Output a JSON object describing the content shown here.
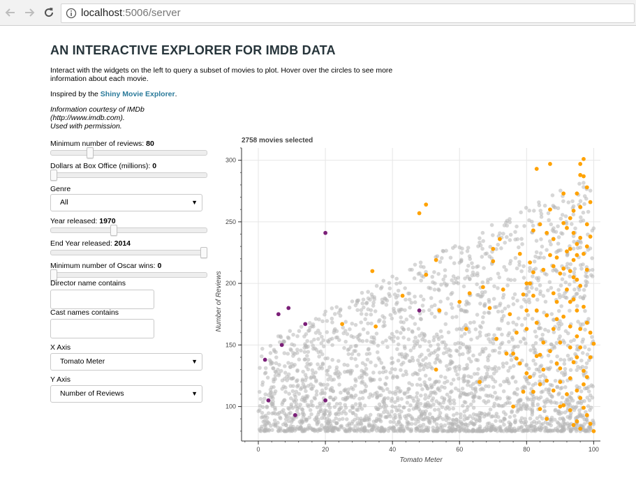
{
  "browser": {
    "url_host": "localhost",
    "url_path": ":5006/server"
  },
  "page": {
    "title": "AN INTERACTIVE EXPLORER FOR IMDB DATA",
    "intro": "Interact with the widgets on the left to query a subset of movies to plot. Hover over the circles to see more information about each movie.",
    "inspired_prefix": "Inspired by the ",
    "inspired_link": "Shiny Movie Explorer",
    "inspired_suffix": ".",
    "credit_line1": "Information courtesy of IMDb",
    "credit_line2": "(http://www.imdb.com).",
    "credit_line3": "Used with permission."
  },
  "widgets": {
    "min_reviews": {
      "label": "Minimum number of reviews: ",
      "value": "80",
      "fraction": 0.24
    },
    "box_office": {
      "label": "Dollars at Box Office (millions): ",
      "value": "0",
      "fraction": 0.0
    },
    "genre": {
      "label": "Genre",
      "selected": "All"
    },
    "year": {
      "label": "Year released: ",
      "value": "1970",
      "fraction": 0.4
    },
    "end_year": {
      "label": "End Year released: ",
      "value": "2014",
      "fraction": 1.0
    },
    "oscars": {
      "label": "Minimum number of Oscar wins: ",
      "value": "0",
      "fraction": 0.0
    },
    "director": {
      "label": "Director name contains",
      "value": ""
    },
    "cast": {
      "label": "Cast names contains",
      "value": ""
    },
    "x_axis": {
      "label": "X Axis",
      "selected": "Tomato Meter"
    },
    "y_axis": {
      "label": "Y Axis",
      "selected": "Number of Reviews"
    }
  },
  "chart_header": "2758 movies selected",
  "chart_data": {
    "type": "scatter",
    "xlabel": "Tomato Meter",
    "ylabel": "Number of Reviews",
    "xlim": [
      -5,
      102
    ],
    "ylim": [
      72,
      310
    ],
    "x_ticks": [
      "0",
      "20",
      "40",
      "60",
      "80",
      "100"
    ],
    "y_ticks": [
      "100",
      "150",
      "200",
      "250",
      "300"
    ],
    "grid": true,
    "colors": {
      "default": "#b7b7b7",
      "award": "#ffa200",
      "highlight": "#7b1f78"
    },
    "background_points": 2600,
    "background_seed": 20140,
    "series": [
      {
        "color_key": "highlight",
        "points": [
          [
            2,
            138
          ],
          [
            3,
            105
          ],
          [
            6,
            175
          ],
          [
            7,
            150
          ],
          [
            9,
            180
          ],
          [
            11,
            93
          ],
          [
            14,
            167
          ],
          [
            20,
            241
          ],
          [
            20,
            105
          ],
          [
            48,
            178
          ]
        ]
      },
      {
        "color_key": "award",
        "points": [
          [
            25,
            167
          ],
          [
            34,
            210
          ],
          [
            35,
            165
          ],
          [
            43,
            190
          ],
          [
            48,
            257
          ],
          [
            50,
            264
          ],
          [
            50,
            207
          ],
          [
            53,
            219
          ],
          [
            53,
            130
          ],
          [
            54,
            178
          ],
          [
            60,
            185
          ],
          [
            62,
            163
          ],
          [
            63,
            192
          ],
          [
            66,
            120
          ],
          [
            67,
            197
          ],
          [
            69,
            180
          ],
          [
            70,
            228
          ],
          [
            70,
            218
          ],
          [
            71,
            155
          ],
          [
            72,
            236
          ],
          [
            73,
            195
          ],
          [
            74,
            143
          ],
          [
            75,
            175
          ],
          [
            76,
            100
          ],
          [
            77,
            160
          ],
          [
            77,
            139
          ],
          [
            78,
            224
          ],
          [
            79,
            191
          ],
          [
            80,
            200
          ],
          [
            80,
            127
          ],
          [
            80,
            178
          ],
          [
            81,
            200
          ],
          [
            82,
            209
          ],
          [
            82,
            112
          ],
          [
            83,
            293
          ],
          [
            83,
            178
          ],
          [
            84,
            248
          ],
          [
            84,
            142
          ],
          [
            85,
            211
          ],
          [
            86,
            174
          ],
          [
            86,
            90
          ],
          [
            87,
            297
          ],
          [
            87,
            260
          ],
          [
            87,
            223
          ],
          [
            88,
            214
          ],
          [
            88,
            192
          ],
          [
            88,
            163
          ],
          [
            89,
            221
          ],
          [
            89,
            185
          ],
          [
            89,
            135
          ],
          [
            90,
            208
          ],
          [
            90,
            152
          ],
          [
            90,
            100
          ],
          [
            91,
            212
          ],
          [
            91,
            249
          ],
          [
            91,
            273
          ],
          [
            91,
            173
          ],
          [
            92,
            245
          ],
          [
            92,
            195
          ],
          [
            93,
            253
          ],
          [
            93,
            228
          ],
          [
            93,
            210
          ],
          [
            93,
            165
          ],
          [
            93,
            123
          ],
          [
            93,
            97
          ],
          [
            94,
            259
          ],
          [
            94,
            241
          ],
          [
            94,
            219
          ],
          [
            94,
            187
          ],
          [
            94,
            136
          ],
          [
            94,
            85
          ],
          [
            95,
            273
          ],
          [
            95,
            232
          ],
          [
            95,
            223
          ],
          [
            95,
            203
          ],
          [
            95,
            178
          ],
          [
            95,
            140
          ],
          [
            95,
            113
          ],
          [
            95,
            88
          ],
          [
            96,
            297
          ],
          [
            96,
            288
          ],
          [
            96,
            262
          ],
          [
            96,
            237
          ],
          [
            96,
            198
          ],
          [
            96,
            163
          ],
          [
            96,
            148
          ],
          [
            96,
            107
          ],
          [
            96,
            82
          ],
          [
            97,
            301
          ],
          [
            97,
            287
          ],
          [
            97,
            224
          ],
          [
            97,
            181
          ],
          [
            97,
            129
          ],
          [
            97,
            99
          ],
          [
            98,
            278
          ],
          [
            98,
            248
          ],
          [
            98,
            230
          ],
          [
            98,
            211
          ],
          [
            98,
            168
          ],
          [
            98,
            124
          ],
          [
            98,
            93
          ],
          [
            99,
            266
          ],
          [
            99,
            238
          ],
          [
            99,
            160
          ],
          [
            99,
            140
          ],
          [
            99,
            86
          ],
          [
            100,
            151
          ],
          [
            100,
            80
          ],
          [
            81,
            217
          ],
          [
            82,
            243
          ],
          [
            85,
            152
          ],
          [
            86,
            121
          ],
          [
            88,
            113
          ],
          [
            90,
            131
          ],
          [
            91,
            101
          ],
          [
            92,
            226
          ],
          [
            93,
            185
          ],
          [
            94,
            205
          ],
          [
            83,
            141
          ],
          [
            84,
            98
          ],
          [
            86,
            241
          ],
          [
            88,
            236
          ],
          [
            89,
            171
          ],
          [
            90,
            120
          ],
          [
            92,
            110
          ],
          [
            93,
            148
          ],
          [
            95,
            157
          ],
          [
            97,
            118
          ],
          [
            76,
            143
          ],
          [
            78,
            135
          ],
          [
            79,
            112
          ],
          [
            80,
            163
          ],
          [
            81,
            124
          ],
          [
            82,
            190
          ],
          [
            83,
            168
          ],
          [
            84,
            118
          ],
          [
            85,
            130
          ],
          [
            87,
            145
          ]
        ]
      }
    ]
  }
}
